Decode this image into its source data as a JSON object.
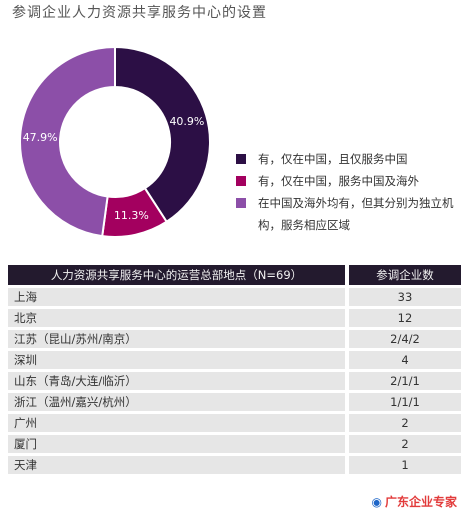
{
  "page_title": "参调企业人力资源共享服务中心的设置",
  "chart_data": {
    "type": "pie",
    "title": "参调企业人力资源共享服务中心的设置",
    "slices": [
      {
        "label": "有，仅在中国，且仅服务中国",
        "value": 40.9,
        "display": "40.9%",
        "color": "#2c0f45"
      },
      {
        "label": "有，仅在中国，服务中国及海外",
        "value": 11.3,
        "display": "11.3%",
        "color": "#a3005f"
      },
      {
        "label": "在中国及海外均有，但其分别为独立机构，服务相应区域",
        "value": 47.9,
        "display": "47.9%",
        "color": "#8c4fa8"
      }
    ],
    "legend_position": "right"
  },
  "legend": {
    "items": [
      {
        "text": "有，仅在中国，且仅服务中国",
        "color": "#2c0f45"
      },
      {
        "text": "有，仅在中国，服务中国及海外",
        "color": "#a3005f"
      },
      {
        "text": "在中国及海外均有，但其分别为独立机构，服务相应区域",
        "color": "#8c4fa8"
      }
    ]
  },
  "table": {
    "header_location": "人力资源共享服务中心的运营总部地点（N=69）",
    "header_count": "参调企业数",
    "rows": [
      {
        "location": "上海",
        "count": "33"
      },
      {
        "location": "北京",
        "count": "12"
      },
      {
        "location": "江苏（昆山/苏州/南京）",
        "count": "2/4/2"
      },
      {
        "location": "深圳",
        "count": "4"
      },
      {
        "location": "山东（青岛/大连/临沂）",
        "count": "2/1/1"
      },
      {
        "location": "浙江（温州/嘉兴/杭州）",
        "count": "1/1/1"
      },
      {
        "location": "广州",
        "count": "2"
      },
      {
        "location": "厦门",
        "count": "2"
      },
      {
        "location": "天津",
        "count": "1"
      }
    ]
  },
  "watermark": {
    "text": "广东企业专家",
    "icon": "logo-icon"
  }
}
